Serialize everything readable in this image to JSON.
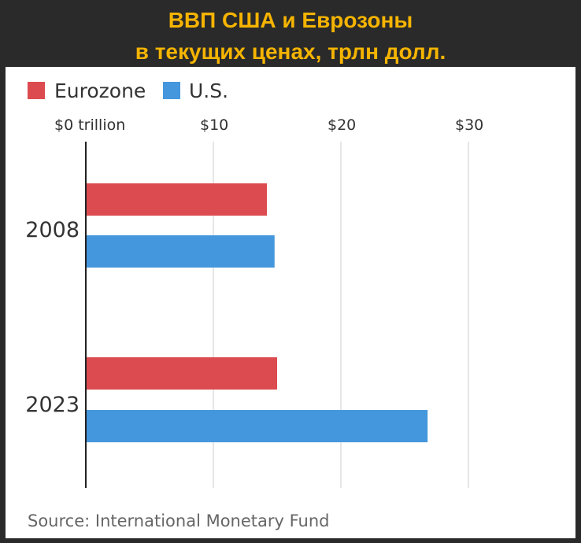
{
  "header": {
    "title_line1": "ВВП США и Еврозоны",
    "title_line2": "в текущих ценах, трлн долл."
  },
  "colors": {
    "title": "#f5b400",
    "eurozone": "#dc4b4f",
    "us": "#4497dc",
    "frame": "#2a2a2a"
  },
  "chart_data": {
    "type": "bar",
    "orientation": "horizontal",
    "title": "ВВП США и Еврозоны в текущих ценах, трлн долл.",
    "categories": [
      "2008",
      "2023"
    ],
    "series": [
      {
        "name": "Eurozone",
        "values": [
          14.2,
          15.0
        ]
      },
      {
        "name": "U.S.",
        "values": [
          14.8,
          26.8
        ]
      }
    ],
    "x_ticks": [
      0,
      10,
      20,
      30
    ],
    "x_tick_labels": [
      "$0 trillion",
      "$10",
      "$20",
      "$30"
    ],
    "xlim": [
      0,
      30
    ],
    "grid": true,
    "legend": "top-left",
    "source": "Source: International Monetary Fund"
  }
}
